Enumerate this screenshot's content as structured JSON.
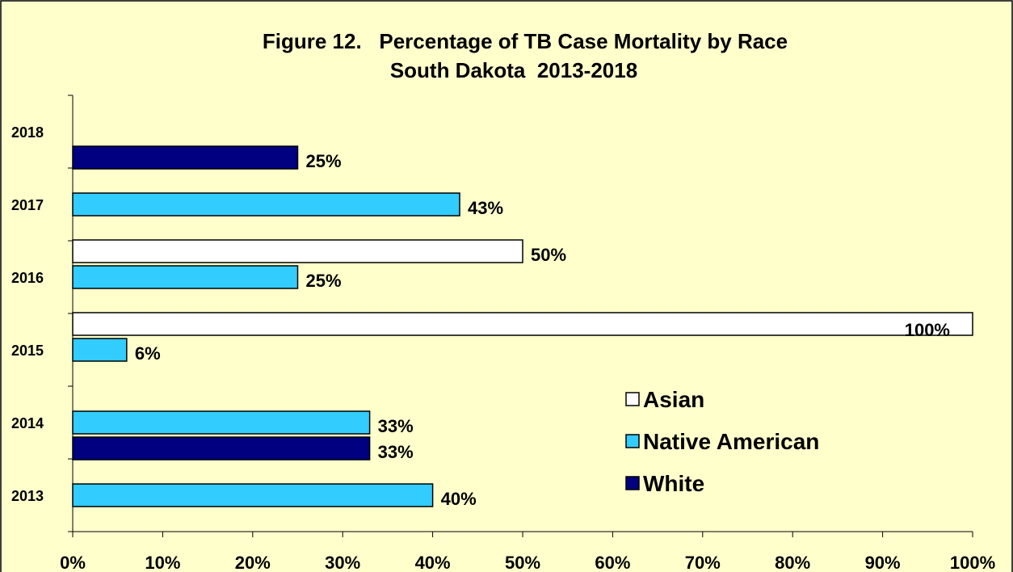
{
  "chart_data": {
    "type": "hbar",
    "title": [
      "Figure 12.   Percentage of TB Case Mortality by Race",
      "South Dakota  2013-2018"
    ],
    "categories": [
      "2013",
      "2014",
      "2015",
      "2016",
      "2017",
      "2018"
    ],
    "series": [
      {
        "name": "Asian",
        "color": "#ffffff",
        "values": [
          null,
          null,
          100,
          50,
          null,
          null
        ],
        "value_labels": [
          null,
          null,
          "100%",
          "50%",
          null,
          null
        ]
      },
      {
        "name": "Native American",
        "color": "#33ccff",
        "values": [
          40,
          33,
          6,
          25,
          43,
          null
        ],
        "value_labels": [
          "40%",
          "33%",
          "6%",
          "25%",
          "43%",
          null
        ]
      },
      {
        "name": "White",
        "color": "#000080",
        "values": [
          null,
          33,
          null,
          null,
          null,
          25
        ],
        "value_labels": [
          null,
          "33%",
          null,
          null,
          null,
          "25%"
        ]
      }
    ],
    "xlim": [
      0,
      100
    ],
    "xticks": [
      {
        "value": 0,
        "label": "0%"
      },
      {
        "value": 10,
        "label": "10%"
      },
      {
        "value": 20,
        "label": "20%"
      },
      {
        "value": 30,
        "label": "30%"
      },
      {
        "value": 40,
        "label": "40%"
      },
      {
        "value": 50,
        "label": "50%"
      },
      {
        "value": 60,
        "label": "60%"
      },
      {
        "value": 70,
        "label": "70%"
      },
      {
        "value": 80,
        "label": "80%"
      },
      {
        "value": 90,
        "label": "90%"
      },
      {
        "value": 100,
        "label": "100%"
      }
    ],
    "legend": "right"
  }
}
